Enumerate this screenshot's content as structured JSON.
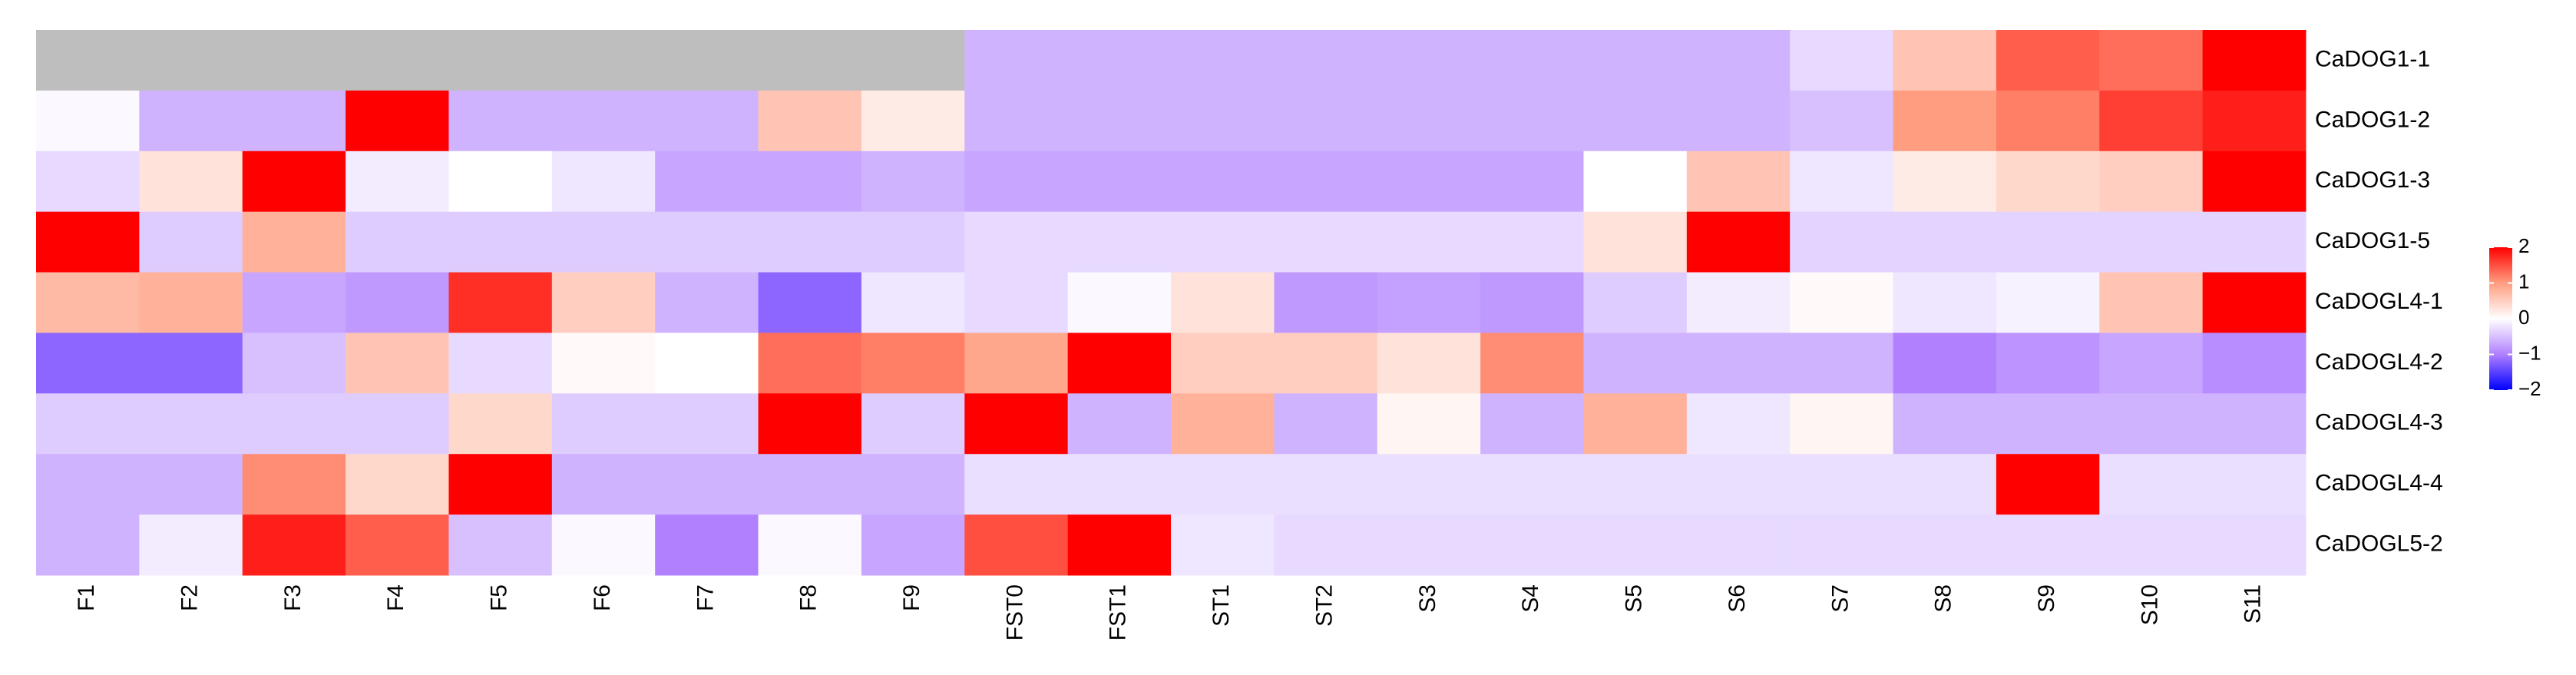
{
  "chart_data": {
    "type": "heatmap",
    "rows": [
      "CaDOG1-1",
      "CaDOG1-2",
      "CaDOG1-3",
      "CaDOG1-5",
      "CaDOGL4-1",
      "CaDOGL4-2",
      "CaDOGL4-3",
      "CaDOGL4-4",
      "CaDOGL5-2"
    ],
    "columns": [
      "F1",
      "F2",
      "F3",
      "F4",
      "F5",
      "F6",
      "F7",
      "F8",
      "F9",
      "FST0",
      "FST1",
      "ST1",
      "ST2",
      "S3",
      "S4",
      "S5",
      "S6",
      "S7",
      "S8",
      "S9",
      "S10",
      "S11"
    ],
    "values": [
      [
        null,
        null,
        null,
        null,
        null,
        null,
        null,
        null,
        null,
        -0.6,
        -0.6,
        -0.6,
        -0.6,
        -0.6,
        -0.6,
        -0.6,
        -0.6,
        -0.3,
        0.6,
        1.4,
        1.3,
        2
      ],
      [
        -0.05,
        -0.6,
        -0.6,
        2,
        -0.6,
        -0.6,
        -0.6,
        0.6,
        0.2,
        -0.6,
        -0.6,
        -0.6,
        -0.6,
        -0.6,
        -0.6,
        -0.6,
        -0.6,
        -0.5,
        1.0,
        1.2,
        1.6,
        1.8
      ],
      [
        -0.3,
        0.3,
        2,
        -0.15,
        0,
        -0.2,
        -0.7,
        -0.7,
        -0.6,
        -0.7,
        -0.7,
        -0.7,
        -0.7,
        -0.7,
        -0.7,
        0,
        0.6,
        -0.2,
        0.2,
        0.4,
        0.5,
        2
      ],
      [
        2,
        -0.4,
        0.8,
        -0.4,
        -0.4,
        -0.4,
        -0.4,
        -0.4,
        -0.4,
        -0.3,
        -0.3,
        -0.3,
        -0.3,
        -0.3,
        -0.3,
        0.3,
        2,
        -0.35,
        -0.35,
        -0.35,
        -0.35,
        -0.35
      ],
      [
        0.7,
        0.8,
        -0.7,
        -0.8,
        1.7,
        0.5,
        -0.6,
        -1.2,
        -0.2,
        -0.3,
        -0.05,
        0.3,
        -0.8,
        -0.75,
        -0.8,
        -0.4,
        -0.15,
        0.05,
        -0.2,
        -0.1,
        0.6,
        2
      ],
      [
        -1.2,
        -1.2,
        -0.5,
        0.6,
        -0.3,
        0.05,
        0,
        1.3,
        1.2,
        0.9,
        2,
        0.5,
        0.5,
        0.3,
        1.1,
        -0.6,
        -0.6,
        -0.6,
        -1.0,
        -0.85,
        -0.7,
        -0.9
      ],
      [
        -0.4,
        -0.4,
        -0.4,
        -0.4,
        0.4,
        -0.4,
        -0.4,
        2,
        -0.4,
        2,
        -0.6,
        0.8,
        -0.6,
        0.1,
        -0.6,
        0.8,
        -0.2,
        0.1,
        -0.6,
        -0.6,
        -0.6,
        -0.6
      ],
      [
        -0.6,
        -0.6,
        1.1,
        0.4,
        2,
        -0.6,
        -0.6,
        -0.6,
        -0.6,
        -0.25,
        -0.25,
        -0.25,
        -0.25,
        -0.25,
        -0.25,
        -0.25,
        -0.25,
        -0.25,
        -0.25,
        2,
        -0.25,
        -0.25
      ],
      [
        -0.6,
        -0.15,
        1.8,
        1.4,
        -0.5,
        -0.05,
        -1.0,
        -0.05,
        -0.7,
        1.5,
        2,
        -0.2,
        -0.3,
        -0.3,
        -0.3,
        -0.3,
        -0.3,
        -0.3,
        -0.3,
        -0.3,
        -0.3,
        -0.3
      ]
    ],
    "clim": [
      -2,
      2
    ],
    "colors": [
      "#0000ff",
      "#b080ff",
      "#ffffff",
      "#ff9d80",
      "#ff0000"
    ],
    "na_color": "#bebebe",
    "cticks": [
      2,
      1,
      0,
      {
        "value": -1,
        "label": "−1"
      },
      {
        "value": -2,
        "label": "−2"
      }
    ]
  }
}
